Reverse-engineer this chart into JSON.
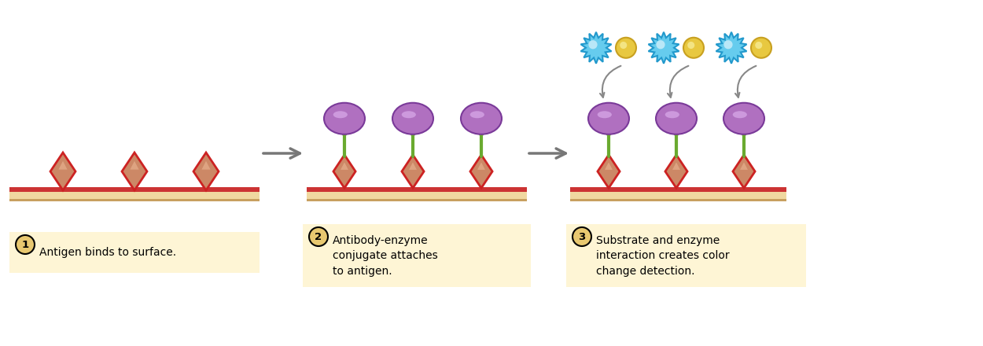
{
  "bg_color": "#ffffff",
  "surface_top_color": "#cc3333",
  "surface_fill": "#f0d8a0",
  "surface_bottom_color": "#c8a060",
  "diamond_face_color": "#cc8866",
  "diamond_edge_color": "#cc2222",
  "antibody_color": "#6aaa30",
  "enzyme_face_color": "#b070c0",
  "enzyme_edge_color": "#7a3a99",
  "substrate_blue_fill": "#66ccee",
  "substrate_blue_edge": "#2299cc",
  "substrate_yellow_fill": "#e8c840",
  "substrate_yellow_edge": "#c8a020",
  "arrow_color": "#777777",
  "label_bg_color": "#fef5d5",
  "number_bg_color": "#e8c870",
  "step1_label": "Antigen binds to surface.",
  "step2_label": "Antibody-enzyme\nconjugate attaches\nto antigen.",
  "step3_label": "Substrate and enzyme\ninteraction creates color\nchange detection."
}
